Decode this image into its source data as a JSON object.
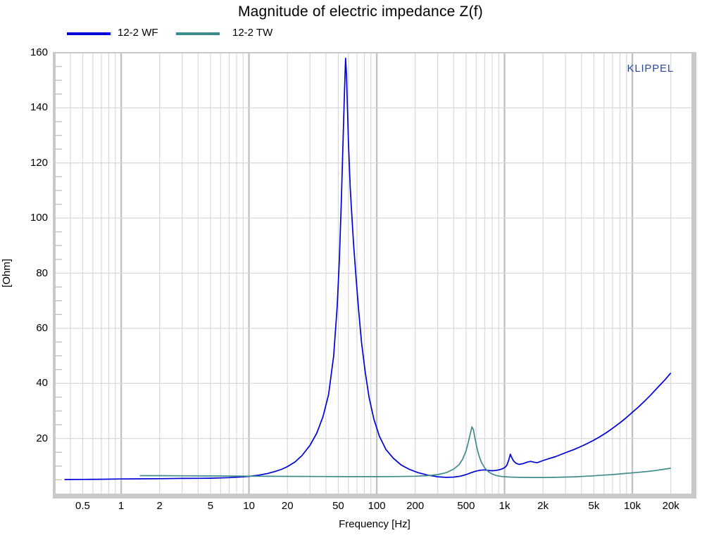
{
  "chart_data": {
    "type": "line",
    "title": "Magnitude of electric impedance Z(f)",
    "xlabel": "Frequency [Hz]",
    "ylabel": "[Ohm]",
    "watermark": "KLIPPEL",
    "x_scale": "log",
    "xlim": [
      0.307,
      29000
    ],
    "ylim": [
      0,
      160
    ],
    "y_major_step": 20,
    "y_minor_step": 5,
    "grid": "on",
    "legend_position": "top-left",
    "x_ticks": [
      {
        "v": 0.5,
        "label": "0.5"
      },
      {
        "v": 1,
        "label": "1"
      },
      {
        "v": 2,
        "label": "2"
      },
      {
        "v": 5,
        "label": "5"
      },
      {
        "v": 10,
        "label": "10"
      },
      {
        "v": 20,
        "label": "20"
      },
      {
        "v": 50,
        "label": "50"
      },
      {
        "v": 100,
        "label": "100"
      },
      {
        "v": 200,
        "label": "200"
      },
      {
        "v": 500,
        "label": "500"
      },
      {
        "v": 1000,
        "label": "1k"
      },
      {
        "v": 2000,
        "label": "2k"
      },
      {
        "v": 5000,
        "label": "5k"
      },
      {
        "v": 10000,
        "label": "10k"
      },
      {
        "v": 20000,
        "label": "20k"
      }
    ],
    "y_ticks": [
      {
        "v": 20,
        "label": "20"
      },
      {
        "v": 40,
        "label": "40"
      },
      {
        "v": 60,
        "label": "60"
      },
      {
        "v": 80,
        "label": "80"
      },
      {
        "v": 100,
        "label": "100"
      },
      {
        "v": 120,
        "label": "120"
      },
      {
        "v": 140,
        "label": "140"
      },
      {
        "v": 160,
        "label": "160"
      }
    ],
    "colors": {
      "grid_major": "#c2c2c2",
      "grid_minor": "#d8d8d8",
      "frame": "#c9c9c9",
      "text": "#000000",
      "watermark": "#2B4A9C"
    },
    "series": [
      {
        "name": "12-2 WF",
        "color": "#0000D9",
        "points": [
          [
            0.36,
            5.1
          ],
          [
            0.5,
            5.15
          ],
          [
            0.7,
            5.2
          ],
          [
            1,
            5.3
          ],
          [
            1.4,
            5.35
          ],
          [
            2,
            5.4
          ],
          [
            3,
            5.5
          ],
          [
            4,
            5.55
          ],
          [
            5,
            5.6
          ],
          [
            6,
            5.7
          ],
          [
            7,
            5.8
          ],
          [
            8,
            5.95
          ],
          [
            9,
            6.1
          ],
          [
            10,
            6.25
          ],
          [
            12,
            6.7
          ],
          [
            14,
            7.3
          ],
          [
            16,
            8.0
          ],
          [
            18,
            8.8
          ],
          [
            20,
            9.8
          ],
          [
            23,
            11.5
          ],
          [
            26,
            13.8
          ],
          [
            30,
            17.5
          ],
          [
            34,
            22
          ],
          [
            38,
            28
          ],
          [
            42,
            36
          ],
          [
            46,
            50
          ],
          [
            49,
            68
          ],
          [
            51,
            85
          ],
          [
            53,
            108
          ],
          [
            55,
            135
          ],
          [
            56,
            147
          ],
          [
            57,
            158
          ],
          [
            58,
            152
          ],
          [
            60,
            128
          ],
          [
            62,
            111
          ],
          [
            64,
            100
          ],
          [
            66,
            90
          ],
          [
            69,
            78
          ],
          [
            72,
            67
          ],
          [
            76,
            55
          ],
          [
            81,
            44.5
          ],
          [
            87,
            35
          ],
          [
            95,
            27
          ],
          [
            105,
            20.8
          ],
          [
            118,
            16
          ],
          [
            135,
            12.8
          ],
          [
            155,
            10.4
          ],
          [
            180,
            8.8
          ],
          [
            210,
            7.6
          ],
          [
            250,
            6.7
          ],
          [
            300,
            6.1
          ],
          [
            350,
            5.9
          ],
          [
            400,
            6.0
          ],
          [
            450,
            6.3
          ],
          [
            500,
            6.9
          ],
          [
            550,
            7.6
          ],
          [
            600,
            8.2
          ],
          [
            650,
            8.5
          ],
          [
            700,
            8.6
          ],
          [
            750,
            8.4
          ],
          [
            800,
            8.3
          ],
          [
            850,
            8.4
          ],
          [
            900,
            8.6
          ],
          [
            950,
            8.9
          ],
          [
            1000,
            9.4
          ],
          [
            1040,
            10.2
          ],
          [
            1080,
            12.2
          ],
          [
            1110,
            14.3
          ],
          [
            1140,
            13
          ],
          [
            1180,
            11.8
          ],
          [
            1230,
            11
          ],
          [
            1300,
            10.6
          ],
          [
            1400,
            10.9
          ],
          [
            1500,
            11.4
          ],
          [
            1600,
            11.7
          ],
          [
            1700,
            11.4
          ],
          [
            1800,
            11.2
          ],
          [
            1900,
            11.6
          ],
          [
            2000,
            12.0
          ],
          [
            2200,
            12.6
          ],
          [
            2500,
            13.4
          ],
          [
            2800,
            14.3
          ],
          [
            3100,
            15.1
          ],
          [
            3500,
            16
          ],
          [
            4000,
            17.2
          ],
          [
            4500,
            18.3
          ],
          [
            5000,
            19.4
          ],
          [
            5600,
            20.7
          ],
          [
            6300,
            22.2
          ],
          [
            7100,
            23.9
          ],
          [
            8000,
            25.7
          ],
          [
            9000,
            27.6
          ],
          [
            10000,
            29.5
          ],
          [
            11200,
            31.5
          ],
          [
            12500,
            33.6
          ],
          [
            14000,
            35.9
          ],
          [
            16000,
            38.8
          ],
          [
            18000,
            41.3
          ],
          [
            20000,
            43.8
          ]
        ]
      },
      {
        "name": "12-2 TW",
        "color": "#3F8C8C",
        "points": [
          [
            1.4,
            6.5
          ],
          [
            2,
            6.5
          ],
          [
            3,
            6.45
          ],
          [
            5,
            6.4
          ],
          [
            8,
            6.35
          ],
          [
            12,
            6.3
          ],
          [
            20,
            6.25
          ],
          [
            35,
            6.2
          ],
          [
            60,
            6.15
          ],
          [
            100,
            6.15
          ],
          [
            150,
            6.2
          ],
          [
            200,
            6.3
          ],
          [
            250,
            6.5
          ],
          [
            300,
            6.9
          ],
          [
            350,
            7.6
          ],
          [
            400,
            8.9
          ],
          [
            440,
            10.5
          ],
          [
            470,
            12.5
          ],
          [
            500,
            15.5
          ],
          [
            520,
            18.5
          ],
          [
            540,
            21.8
          ],
          [
            555,
            24.2
          ],
          [
            570,
            23.2
          ],
          [
            585,
            20.5
          ],
          [
            605,
            17
          ],
          [
            630,
            13.8
          ],
          [
            660,
            11.3
          ],
          [
            700,
            9.3
          ],
          [
            750,
            7.9
          ],
          [
            800,
            7.1
          ],
          [
            870,
            6.5
          ],
          [
            950,
            6.2
          ],
          [
            1100,
            6.0
          ],
          [
            1300,
            5.9
          ],
          [
            1600,
            5.85
          ],
          [
            2000,
            5.85
          ],
          [
            2500,
            5.9
          ],
          [
            3000,
            6.0
          ],
          [
            3600,
            6.1
          ],
          [
            4300,
            6.3
          ],
          [
            5000,
            6.45
          ],
          [
            6000,
            6.7
          ],
          [
            7000,
            6.9
          ],
          [
            8000,
            7.15
          ],
          [
            9500,
            7.45
          ],
          [
            11000,
            7.7
          ],
          [
            13000,
            8.0
          ],
          [
            15000,
            8.35
          ],
          [
            17000,
            8.7
          ],
          [
            20000,
            9.2
          ]
        ]
      }
    ]
  }
}
